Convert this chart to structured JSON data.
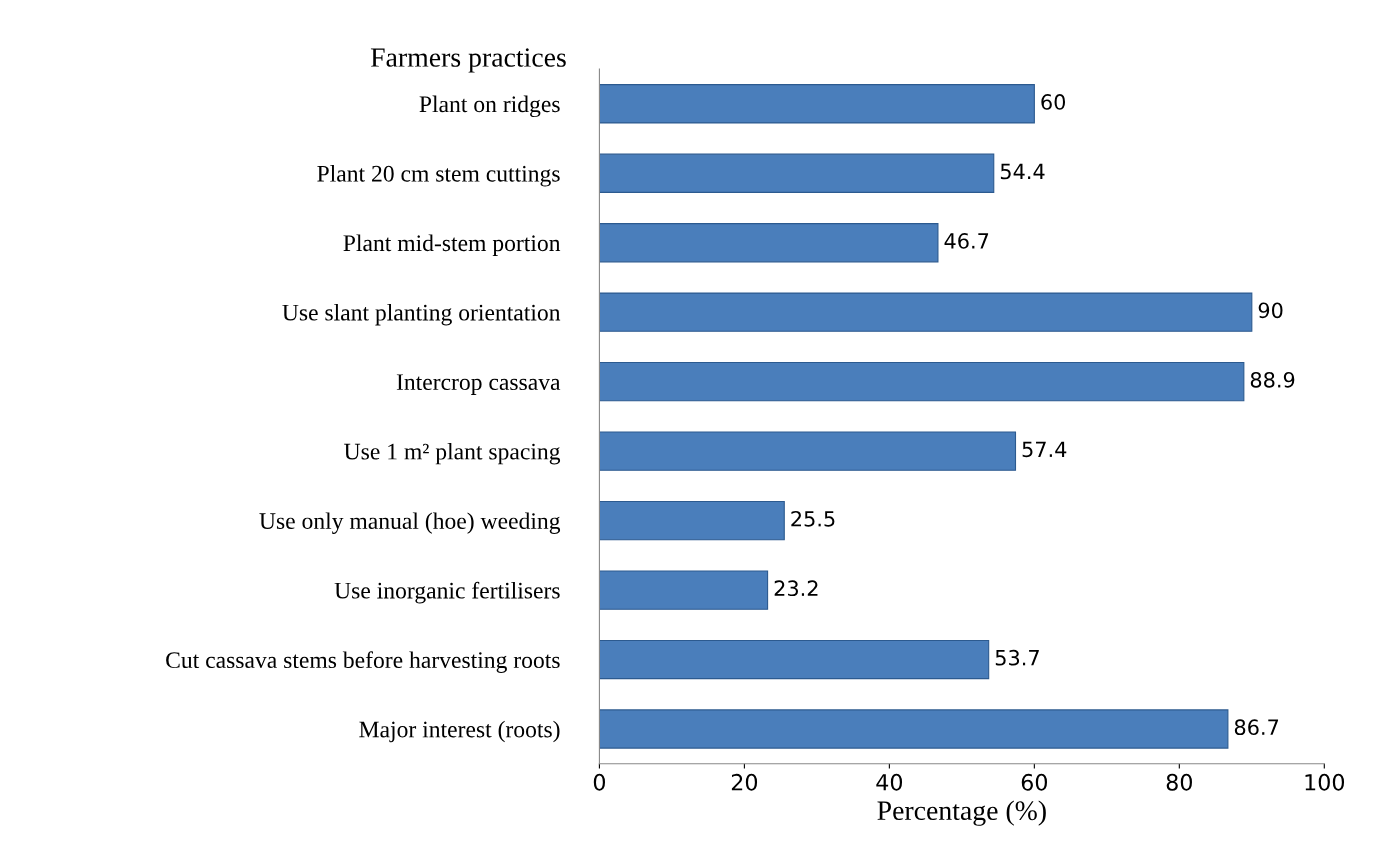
{
  "chart_data": {
    "type": "bar",
    "orientation": "horizontal",
    "ylabel": "Farmers practices",
    "xlabel": "Percentage (%)",
    "categories": [
      "Plant on ridges",
      "Plant 20 cm stem cuttings",
      "Plant mid-stem portion",
      "Use slant planting orientation",
      "Intercrop cassava",
      "Use 1 m² plant spacing",
      "Use only manual (hoe) weeding",
      "Use inorganic fertilisers",
      "Cut cassava stems before harvesting roots",
      "Major interest (roots)"
    ],
    "values": [
      60,
      54.4,
      46.7,
      90,
      88.9,
      57.4,
      25.5,
      23.2,
      53.7,
      86.7
    ],
    "color": "#4a7ebb",
    "data_labels": true,
    "xlim": [
      0,
      100
    ],
    "xticks": [
      0,
      20,
      40,
      60,
      80,
      100
    ],
    "grid": false,
    "legend": false
  }
}
